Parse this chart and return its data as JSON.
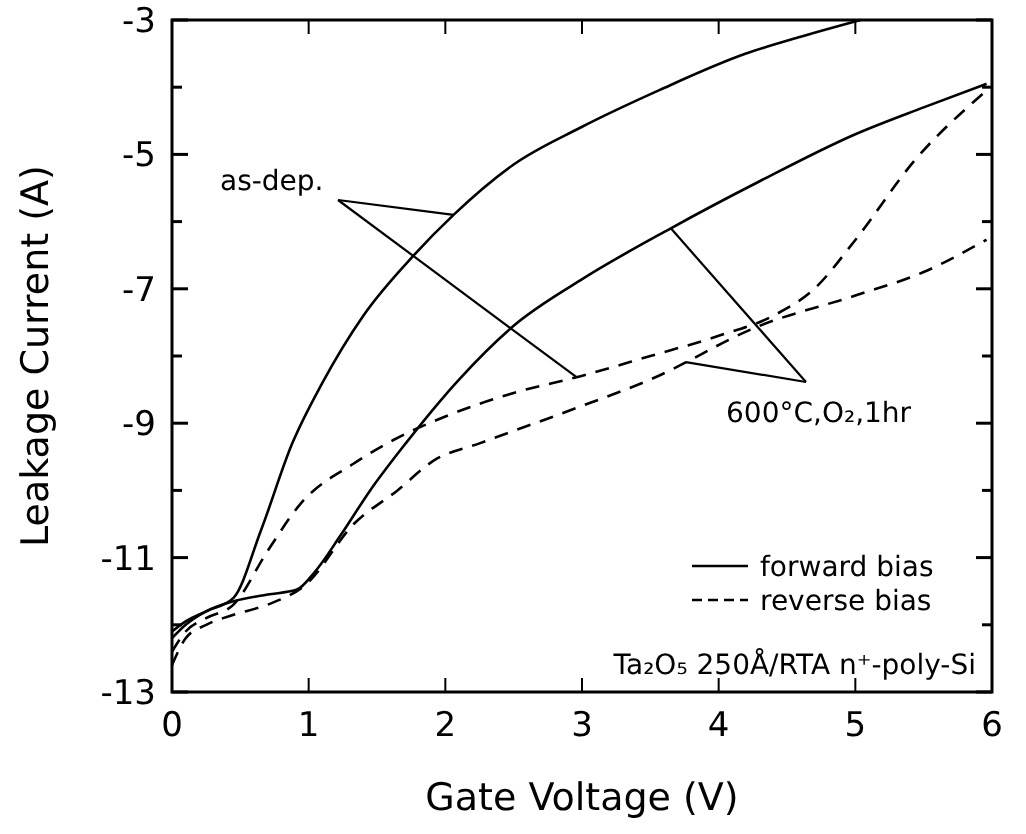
{
  "chart_data": {
    "type": "line",
    "xlabel": "Gate Voltage (V)",
    "ylabel": "Leakage Current (A)",
    "xlim": [
      0,
      6
    ],
    "ylim": [
      -13,
      -3
    ],
    "xticks": [
      0,
      1,
      2,
      3,
      4,
      5,
      6
    ],
    "yticks": [
      -3,
      {
        "value": -4,
        "label": null
      },
      -5,
      {
        "value": -6,
        "label": null
      },
      -7,
      {
        "value": -8,
        "label": null
      },
      -9,
      {
        "value": -10,
        "label": null
      },
      -11,
      {
        "value": -12,
        "label": null
      },
      -13
    ],
    "grid": false,
    "legend": "bottom right",
    "marker": "none",
    "series": [
      {
        "name": "forward bias",
        "color": "#000000",
        "line_style": "solid",
        "x": [
          0,
          0.1,
          0.25,
          0.45,
          0.65,
          0.88,
          1.1,
          1.4,
          1.77,
          2.06,
          2.5,
          2.99,
          3.57,
          4.2,
          4.6,
          5.04
        ],
        "values": [
          -12.1,
          -11.95,
          -11.8,
          -11.6,
          -10.6,
          -9.3,
          -8.4,
          -7.4,
          -6.5,
          -5.9,
          -5.15,
          -4.6,
          -4.04,
          -3.5,
          -3.25,
          -3.0
        ]
      },
      {
        "color": "#000000",
        "line_style": "solid",
        "x": [
          0,
          0.1,
          0.25,
          0.45,
          0.7,
          0.91,
          1.05,
          1.23,
          1.45,
          1.71,
          2.1,
          2.5,
          2.99,
          3.65,
          4.3,
          5.0,
          5.5,
          5.96
        ],
        "values": [
          -12.2,
          -12.0,
          -11.8,
          -11.65,
          -11.55,
          -11.48,
          -11.2,
          -10.68,
          -10.0,
          -9.3,
          -8.35,
          -7.55,
          -6.87,
          -6.1,
          -5.4,
          -4.7,
          -4.3,
          -3.95
        ]
      },
      {
        "name": "reverse bias",
        "color": "#000000",
        "line_style": "dashed",
        "x": [
          0,
          0.1,
          0.25,
          0.45,
          0.7,
          0.94,
          1.33,
          1.62,
          2.0,
          2.5,
          2.99,
          3.5,
          4.0,
          4.4,
          4.7,
          4.99,
          5.43,
          5.96
        ],
        "values": [
          -12.4,
          -12.1,
          -11.9,
          -11.7,
          -10.9,
          -10.2,
          -9.6,
          -9.25,
          -8.9,
          -8.55,
          -8.3,
          -8.0,
          -7.7,
          -7.4,
          -7.0,
          -6.3,
          -5.1,
          -4.05
        ]
      },
      {
        "color": "#000000",
        "line_style": "dashed",
        "x": [
          0,
          0.1,
          0.25,
          0.45,
          0.7,
          0.98,
          1.33,
          1.65,
          1.92,
          2.25,
          2.99,
          3.5,
          4.3,
          5.0,
          5.5,
          5.96
        ],
        "values": [
          -12.6,
          -12.2,
          -12.0,
          -11.85,
          -11.7,
          -11.4,
          -10.5,
          -10.0,
          -9.55,
          -9.3,
          -8.75,
          -8.35,
          -7.55,
          -7.1,
          -6.75,
          -6.27
        ]
      }
    ],
    "annotations": [
      {
        "text": "as-dep.",
        "x": 2.06,
        "y": -5.9
      },
      {
        "text": "600°C,O₂,1hr",
        "x": 3.65,
        "y": -6.1
      },
      "Ta₂O₅ 250Å/RTA n⁺-poly-Si"
    ]
  }
}
